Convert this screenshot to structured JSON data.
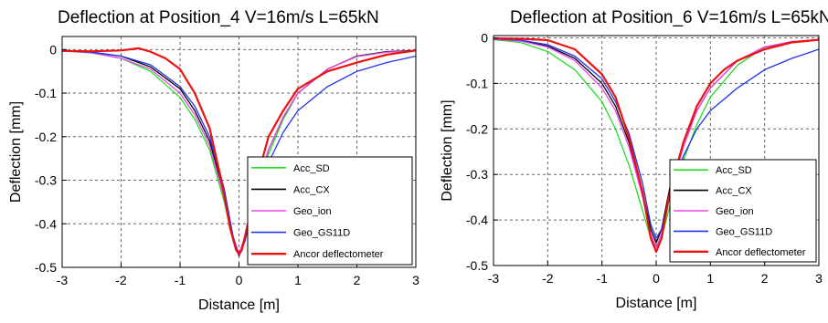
{
  "chart_data": [
    {
      "type": "line",
      "title": "Deflection at Position_4 V=16m/s L=65kN",
      "xlabel": "Distance [m]",
      "ylabel": "Deflection [mm]",
      "xlim": [
        -3,
        3
      ],
      "ylim": [
        -0.5,
        0.03
      ],
      "xticks": [
        -3,
        -2,
        -1,
        0,
        1,
        2,
        3
      ],
      "xtick_labels": [
        "-3",
        "-2",
        "-1",
        "0",
        "1",
        "2",
        "3"
      ],
      "yticks": [
        0,
        -0.1,
        -0.2,
        -0.3,
        -0.4,
        -0.5
      ],
      "ytick_labels": [
        "0",
        "-0.1",
        "-0.2",
        "-0.3",
        "-0.4",
        "-0.5"
      ],
      "grid": true,
      "legend_position": "bottom-right",
      "series": [
        {
          "name": "Acc_SD",
          "color": "#22dd22",
          "x": [
            -3,
            -2.5,
            -2,
            -1.5,
            -1,
            -0.75,
            -0.5,
            -0.25,
            -0.1,
            0,
            0.1,
            0.25,
            0.5,
            0.75,
            1,
            1.5,
            2,
            2.5,
            3
          ],
          "y": [
            -0.003,
            -0.008,
            -0.02,
            -0.05,
            -0.11,
            -0.16,
            -0.23,
            -0.35,
            -0.44,
            -0.47,
            -0.44,
            -0.35,
            -0.24,
            -0.16,
            -0.1,
            -0.045,
            -0.015,
            -0.005,
            -0.003
          ]
        },
        {
          "name": "Acc_CX",
          "color": "#000000",
          "x": [
            -3,
            -2.5,
            -2,
            -1.5,
            -1,
            -0.75,
            -0.5,
            -0.25,
            -0.1,
            0,
            0.1,
            0.25,
            0.5,
            0.75,
            1,
            1.5,
            2,
            2.5,
            3
          ],
          "y": [
            -0.003,
            -0.006,
            -0.015,
            -0.04,
            -0.09,
            -0.14,
            -0.21,
            -0.33,
            -0.43,
            -0.47,
            -0.43,
            -0.34,
            -0.23,
            -0.155,
            -0.1,
            -0.045,
            -0.015,
            -0.005,
            -0.002
          ]
        },
        {
          "name": "Geo_ion",
          "color": "#ee44ee",
          "x": [
            -3,
            -2.5,
            -2,
            -1.5,
            -1,
            -0.75,
            -0.5,
            -0.25,
            -0.1,
            0,
            0.1,
            0.25,
            0.5,
            0.75,
            1,
            1.5,
            2,
            2.5,
            3
          ],
          "y": [
            -0.003,
            -0.007,
            -0.02,
            -0.045,
            -0.1,
            -0.15,
            -0.22,
            -0.34,
            -0.43,
            -0.47,
            -0.43,
            -0.34,
            -0.23,
            -0.155,
            -0.1,
            -0.045,
            -0.016,
            -0.006,
            -0.003
          ]
        },
        {
          "name": "Geo_GS11D",
          "color": "#2233ee",
          "x": [
            -3,
            -2.5,
            -2,
            -1.5,
            -1,
            -0.75,
            -0.5,
            -0.25,
            -0.1,
            0,
            0.1,
            0.25,
            0.5,
            0.75,
            1,
            1.5,
            2,
            2.5,
            3
          ],
          "y": [
            -0.002,
            -0.006,
            -0.015,
            -0.035,
            -0.085,
            -0.13,
            -0.2,
            -0.32,
            -0.43,
            -0.475,
            -0.44,
            -0.36,
            -0.26,
            -0.19,
            -0.14,
            -0.085,
            -0.05,
            -0.03,
            -0.015
          ]
        },
        {
          "name": "Ancor deflectometer",
          "color": "#ee1111",
          "x": [
            -3,
            -2.5,
            -2,
            -1.7,
            -1.5,
            -1.25,
            -1,
            -0.75,
            -0.5,
            -0.3,
            -0.15,
            -0.05,
            0,
            0.05,
            0.15,
            0.3,
            0.5,
            0.75,
            1,
            1.25,
            1.5,
            2,
            2.5,
            3
          ],
          "y": [
            -0.003,
            -0.004,
            -0.002,
            0.003,
            -0.005,
            -0.02,
            -0.045,
            -0.1,
            -0.18,
            -0.3,
            -0.41,
            -0.46,
            -0.47,
            -0.46,
            -0.4,
            -0.3,
            -0.2,
            -0.14,
            -0.09,
            -0.07,
            -0.05,
            -0.03,
            -0.012,
            -0.002
          ]
        }
      ]
    },
    {
      "type": "line",
      "title": "Deflection at Position_6 V=16m/s L=65kN",
      "xlabel": "Distance [m]",
      "ylabel": "Deflection [mm]",
      "xlim": [
        -3,
        3
      ],
      "ylim": [
        -0.5,
        0.005
      ],
      "xticks": [
        -3,
        -2,
        -1,
        0,
        1,
        2,
        3
      ],
      "xtick_labels": [
        "-3",
        "-2",
        "-1",
        "0",
        "1",
        "2",
        "3"
      ],
      "yticks": [
        0,
        -0.1,
        -0.2,
        -0.3,
        -0.4,
        -0.5
      ],
      "ytick_labels": [
        "0",
        "-0.1",
        "-0.2",
        "-0.3",
        "-0.4",
        "-0.5"
      ],
      "grid": true,
      "legend_position": "bottom-right",
      "series": [
        {
          "name": "Acc_SD",
          "color": "#22dd22",
          "x": [
            -3,
            -2.5,
            -2,
            -1.5,
            -1,
            -0.75,
            -0.5,
            -0.25,
            -0.1,
            0,
            0.1,
            0.25,
            0.5,
            0.75,
            1,
            1.5,
            2,
            2.5,
            3
          ],
          "y": [
            -0.004,
            -0.01,
            -0.03,
            -0.07,
            -0.14,
            -0.2,
            -0.28,
            -0.38,
            -0.44,
            -0.46,
            -0.44,
            -0.37,
            -0.27,
            -0.19,
            -0.13,
            -0.06,
            -0.02,
            -0.008,
            -0.004
          ]
        },
        {
          "name": "Acc_CX",
          "color": "#000000",
          "x": [
            -3,
            -2.5,
            -2,
            -1.5,
            -1,
            -0.75,
            -0.5,
            -0.25,
            -0.1,
            0,
            0.1,
            0.25,
            0.5,
            0.75,
            1,
            1.5,
            2,
            2.5,
            3
          ],
          "y": [
            -0.003,
            -0.006,
            -0.018,
            -0.045,
            -0.1,
            -0.15,
            -0.23,
            -0.34,
            -0.42,
            -0.45,
            -0.42,
            -0.33,
            -0.23,
            -0.16,
            -0.11,
            -0.05,
            -0.02,
            -0.01,
            -0.005
          ]
        },
        {
          "name": "Geo_ion",
          "color": "#ee44ee",
          "x": [
            -3,
            -2.5,
            -2,
            -1.5,
            -1,
            -0.75,
            -0.5,
            -0.25,
            -0.1,
            0,
            0.1,
            0.25,
            0.5,
            0.75,
            1,
            1.5,
            2,
            2.5,
            3
          ],
          "y": [
            -0.003,
            -0.007,
            -0.02,
            -0.05,
            -0.11,
            -0.16,
            -0.24,
            -0.35,
            -0.43,
            -0.46,
            -0.43,
            -0.34,
            -0.24,
            -0.16,
            -0.11,
            -0.05,
            -0.02,
            -0.008,
            -0.004
          ]
        },
        {
          "name": "Geo_GS11D",
          "color": "#2233ee",
          "x": [
            -3,
            -2.5,
            -2,
            -1.5,
            -1,
            -0.75,
            -0.5,
            -0.25,
            -0.1,
            0,
            0.1,
            0.25,
            0.5,
            0.75,
            1,
            1.5,
            2,
            2.5,
            3
          ],
          "y": [
            -0.002,
            -0.005,
            -0.015,
            -0.04,
            -0.09,
            -0.14,
            -0.21,
            -0.32,
            -0.41,
            -0.44,
            -0.42,
            -0.35,
            -0.26,
            -0.2,
            -0.16,
            -0.11,
            -0.07,
            -0.045,
            -0.025
          ]
        },
        {
          "name": "Ancor deflectometer",
          "color": "#ee1111",
          "x": [
            -3,
            -2.5,
            -2,
            -1.5,
            -1,
            -0.75,
            -0.5,
            -0.25,
            -0.1,
            0,
            0.1,
            0.25,
            0.5,
            0.75,
            1,
            1.25,
            1.5,
            2,
            2.5,
            3
          ],
          "y": [
            -0.001,
            -0.002,
            -0.005,
            -0.025,
            -0.08,
            -0.13,
            -0.22,
            -0.34,
            -0.44,
            -0.47,
            -0.44,
            -0.34,
            -0.23,
            -0.15,
            -0.1,
            -0.07,
            -0.05,
            -0.025,
            -0.01,
            -0.004
          ]
        }
      ]
    }
  ]
}
